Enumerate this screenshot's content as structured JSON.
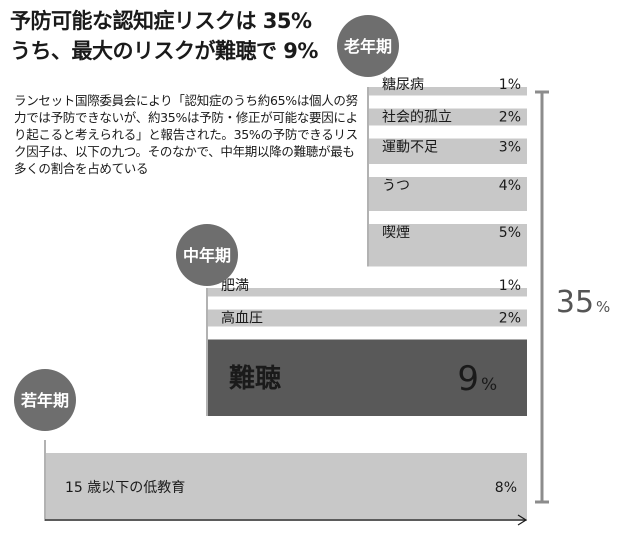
{
  "headline": {
    "line1": "予防可能な認知症リスクは 35%",
    "line2": "うち、最大のリスクが難聴で 9%"
  },
  "lead_text": "ランセット国際委員会により「認知症のうち約65%は個人の努力では予防できないが、約35%は予防・修正が可能な要因により起こると考えられる」と報告された。35%の予防できるリスク因子は、以下の九つ。そのなかで、中年期以降の難聴が最も多くの割合を占めている",
  "chart_data": {
    "type": "bar",
    "orientation": "horizontal",
    "unit": "%",
    "total": {
      "value": 35,
      "label": "35%"
    },
    "colors": {
      "bar": "#c8c8c8",
      "highlight": "#595959",
      "stage_circle": "#6e6e6e",
      "total_bracket": "#8c8c8c"
    },
    "stages": [
      {
        "name": "老年期",
        "factors": [
          {
            "name": "糖尿病",
            "value": 1,
            "label": "1%"
          },
          {
            "name": "社会的孤立",
            "value": 2,
            "label": "2%"
          },
          {
            "name": "運動不足",
            "value": 3,
            "label": "3%"
          },
          {
            "name": "うつ",
            "value": 4,
            "label": "4%"
          },
          {
            "name": "喫煙",
            "value": 5,
            "label": "5%"
          }
        ]
      },
      {
        "name": "中年期",
        "factors": [
          {
            "name": "肥満",
            "value": 1,
            "label": "1%"
          },
          {
            "name": "高血圧",
            "value": 2,
            "label": "2%"
          },
          {
            "name": "難聴",
            "value": 9,
            "label": "9%",
            "highlight": true
          }
        ]
      },
      {
        "name": "若年期",
        "factors": [
          {
            "name": "15 歳以下の低教育",
            "value": 8,
            "label": "8%"
          }
        ]
      }
    ]
  }
}
